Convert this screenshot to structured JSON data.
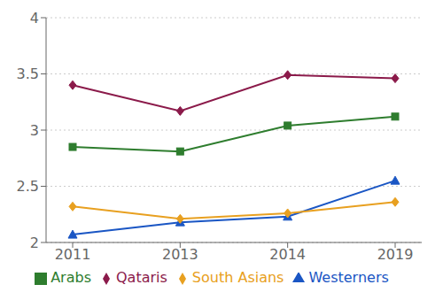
{
  "chart_data": {
    "type": "line",
    "categories": [
      "2011",
      "2013",
      "2014",
      "2019"
    ],
    "series": [
      {
        "name": "Qataris",
        "color": "#8B1A4A",
        "marker": "diamond",
        "values": [
          3.4,
          3.17,
          3.49,
          3.46
        ]
      },
      {
        "name": "Arabs",
        "color": "#2E7D2E",
        "marker": "square",
        "values": [
          2.85,
          2.81,
          3.04,
          3.12
        ]
      },
      {
        "name": "Westerners",
        "color": "#1A56C4",
        "marker": "triangle",
        "values": [
          2.07,
          2.18,
          2.23,
          2.55
        ]
      },
      {
        "name": "South Asians",
        "color": "#E8A020",
        "marker": "diamond",
        "values": [
          2.32,
          2.21,
          2.26,
          2.36
        ]
      }
    ],
    "ylim": [
      2,
      4
    ],
    "yticks": [
      2,
      2.5,
      3,
      3.5,
      4
    ],
    "grid": "y",
    "legend": "bottom"
  }
}
